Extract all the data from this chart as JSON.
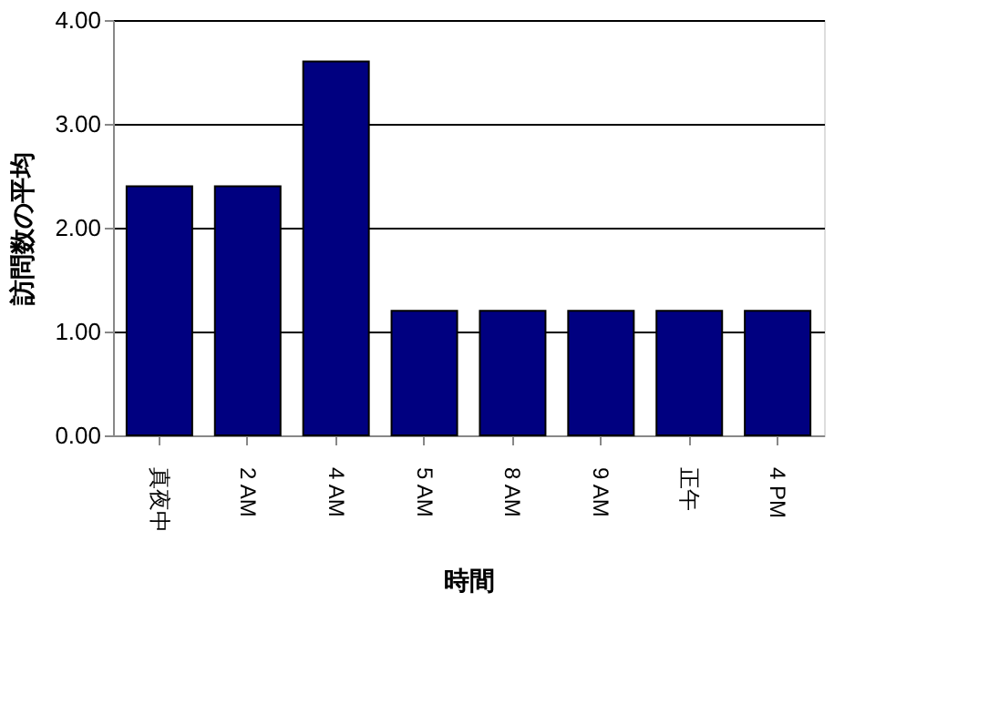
{
  "chart_data": {
    "type": "bar",
    "xlabel": "時間",
    "ylabel": "訪問数の平均",
    "categories": [
      "真夜中",
      "2 AM",
      "4 AM",
      "5 AM",
      "8 AM",
      "9 AM",
      "正午",
      "4 PM"
    ],
    "values": [
      2.4,
      2.4,
      3.6,
      1.2,
      1.2,
      1.2,
      1.2,
      1.2
    ],
    "color": "#000080",
    "ylim": [
      0,
      4
    ],
    "yticks": [
      {
        "value": 0,
        "label": "0.00"
      },
      {
        "value": 1,
        "label": "1.00"
      },
      {
        "value": 2,
        "label": "2.00"
      },
      {
        "value": 3,
        "label": "3.00"
      },
      {
        "value": 4,
        "label": "4.00"
      }
    ],
    "grid": "y"
  }
}
